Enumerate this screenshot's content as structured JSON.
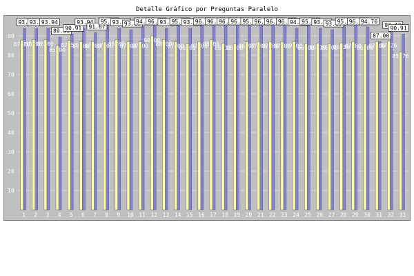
{
  "colors": {
    "series_blue": "#8080e0",
    "series_yellow": "#ffffa0",
    "plot_background": "#c0c0c0",
    "axis_text": "#ffffff",
    "grid": "#d8d8d8"
  },
  "chart_data": {
    "type": "bar",
    "title": "Detalle Gráfico por Preguntas Paralelo",
    "xlabel": "",
    "ylabel": "",
    "ylim": [
      0,
      100
    ],
    "yticks": [
      10,
      20,
      30,
      40,
      50,
      60,
      70,
      80,
      90
    ],
    "grid": true,
    "legend": "none",
    "categories": [
      "1",
      "2",
      "3",
      "4",
      "5",
      "6",
      "7",
      "8",
      "9",
      "10",
      "11",
      "12",
      "13",
      "14",
      "15",
      "16",
      "17",
      "18",
      "19",
      "20",
      "21",
      "22",
      "23",
      "24",
      "25",
      "26",
      "27",
      "28",
      "29",
      "30",
      "31",
      "32",
      "33"
    ],
    "series": [
      {
        "color": "#8080e0",
        "values": [
          93.9,
          93.9,
          93.94,
          89.39,
          90.91,
          93.94,
          91.67,
          95.45,
          93.94,
          93.18,
          94.7,
          96.21,
          93.94,
          95.45,
          93.94,
          96.7,
          96.97,
          96.21,
          96.97,
          95.45,
          96.97,
          96.21,
          96.97,
          94.0,
          95.45,
          93.94,
          93.18,
          95.45,
          96.21,
          94.7,
          87.0,
          92.42,
          90.91
        ]
      },
      {
        "color": "#ffffa0",
        "values": [
          87.8,
          88.0,
          88.0,
          85.0,
          87.53,
          87.0,
          87.0,
          87.0,
          88.0,
          87.0,
          87.0,
          90.0,
          88.0,
          87.0,
          86.01,
          87.0,
          88.0,
          86.12,
          86.0,
          86.97,
          87.0,
          87.0,
          87.0,
          87.0,
          86.0,
          86.19,
          86.0,
          86.36,
          87.0,
          86.0,
          87.0,
          87.26,
          81.76
        ]
      }
    ]
  }
}
